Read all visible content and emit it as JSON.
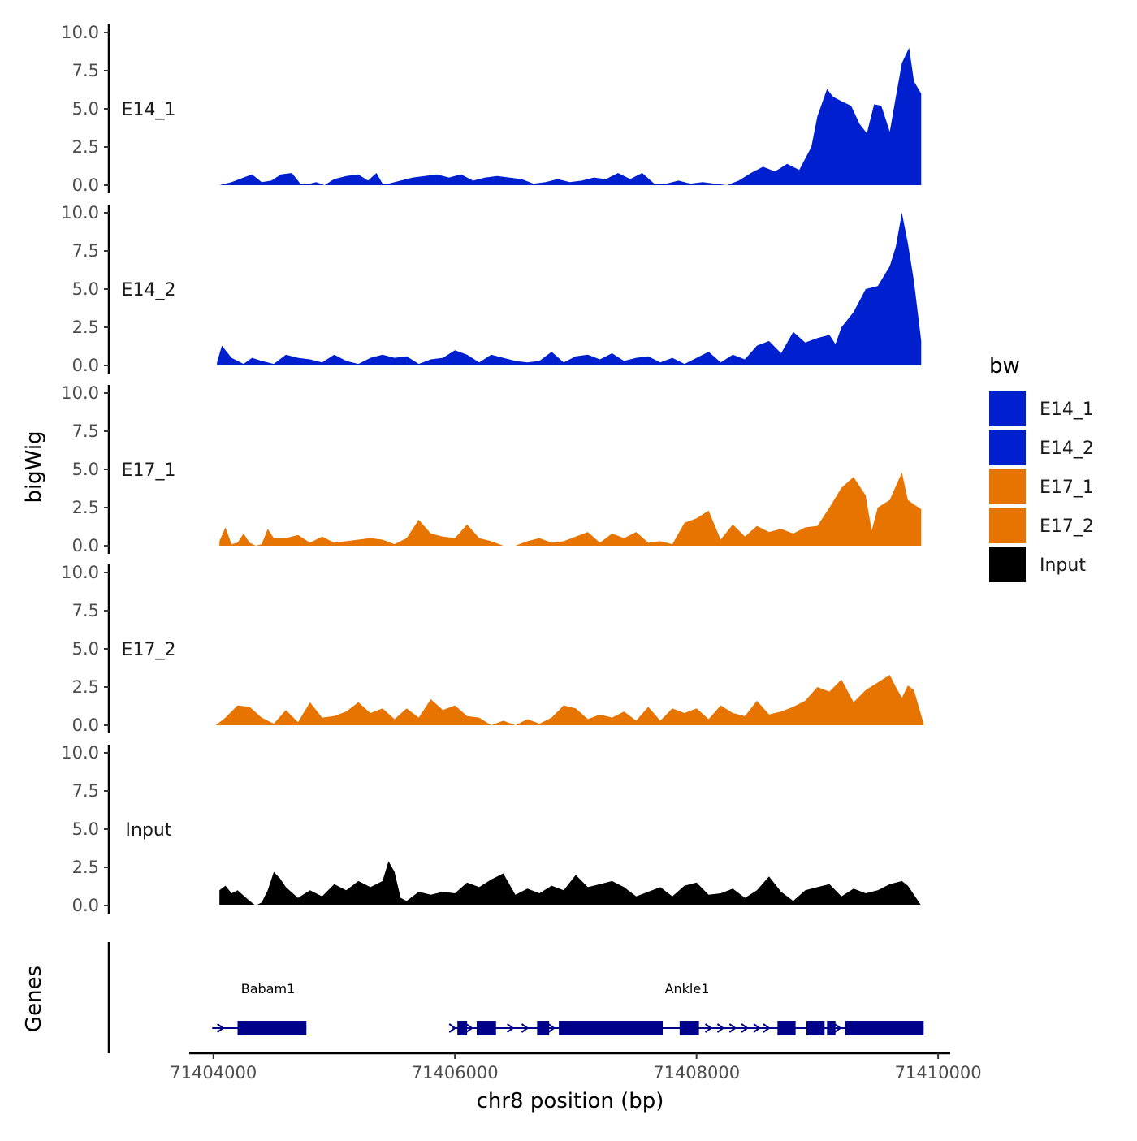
{
  "chart_data": {
    "type": "area",
    "title": "",
    "xlabel": "chr8 position (bp)",
    "ylabel": "bigWig",
    "genes_label": "Genes",
    "xlim": [
      71403800,
      71410100
    ],
    "ylim": [
      0,
      10
    ],
    "x_ticks": [
      71404000,
      71406000,
      71408000,
      71410000
    ],
    "x_tick_labels": [
      "71404000",
      "71406000",
      "71408000",
      "71410000"
    ],
    "y_ticks": [
      0,
      2.5,
      5,
      7.5,
      10
    ],
    "y_tick_labels": [
      "0.0",
      "2.5",
      "5.0",
      "7.5",
      "10.0"
    ],
    "legend": {
      "title": "bw",
      "entries": [
        {
          "name": "E14_1",
          "color": "#0020d0"
        },
        {
          "name": "E14_2",
          "color": "#0020d0"
        },
        {
          "name": "E17_1",
          "color": "#e87400"
        },
        {
          "name": "E17_2",
          "color": "#e87400"
        },
        {
          "name": "Input",
          "color": "#000000"
        }
      ]
    },
    "series": [
      {
        "name": "E14_1",
        "color": "#0020d0",
        "x": [
          71404050,
          71404150,
          71404250,
          71404320,
          71404400,
          71404480,
          71404560,
          71404650,
          71404720,
          71404800,
          71404850,
          71404920,
          71405000,
          71405100,
          71405200,
          71405280,
          71405350,
          71405400,
          71405450,
          71405550,
          71405650,
          71405750,
          71405850,
          71405950,
          71406050,
          71406150,
          71406250,
          71406350,
          71406450,
          71406550,
          71406650,
          71406750,
          71406850,
          71406950,
          71407050,
          71407150,
          71407250,
          71407350,
          71407450,
          71407550,
          71407650,
          71407750,
          71407850,
          71407950,
          71408050,
          71408150,
          71408250,
          71408350,
          71408450,
          71408550,
          71408650,
          71408750,
          71408850,
          71408950,
          71409000,
          71409080,
          71409130,
          71409200,
          71409280,
          71409350,
          71409410,
          71409470,
          71409530,
          71409600,
          71409650,
          71409700,
          71409760,
          71409800,
          71409860
        ],
        "values": [
          0,
          0.2,
          0.5,
          0.7,
          0.2,
          0.3,
          0.7,
          0.8,
          0.1,
          0.1,
          0.2,
          0,
          0.4,
          0.6,
          0.7,
          0.3,
          0.8,
          0.1,
          0.1,
          0.3,
          0.5,
          0.6,
          0.7,
          0.5,
          0.7,
          0.3,
          0.5,
          0.6,
          0.5,
          0.4,
          0.1,
          0.2,
          0.4,
          0.2,
          0.3,
          0.5,
          0.4,
          0.8,
          0.4,
          0.8,
          0.1,
          0.1,
          0.3,
          0.1,
          0.2,
          0.1,
          0,
          0.3,
          0.8,
          1.2,
          0.9,
          1.4,
          1.0,
          2.5,
          4.5,
          6.3,
          5.8,
          5.5,
          5.2,
          4.0,
          3.4,
          5.3,
          5.2,
          3.5,
          5.8,
          8.0,
          9.0,
          6.8,
          6.0
        ]
      },
      {
        "name": "E14_2",
        "color": "#0020d0",
        "x": [
          71404030,
          71404070,
          71404150,
          71404250,
          71404320,
          71404400,
          71404500,
          71404600,
          71404700,
          71404800,
          71404900,
          71405000,
          71405100,
          71405200,
          71405300,
          71405400,
          71405500,
          71405600,
          71405700,
          71405800,
          71405900,
          71406000,
          71406100,
          71406200,
          71406300,
          71406400,
          71406500,
          71406600,
          71406700,
          71406800,
          71406900,
          71407000,
          71407100,
          71407200,
          71407300,
          71407400,
          71407500,
          71407600,
          71407700,
          71407800,
          71407900,
          71408000,
          71408100,
          71408200,
          71408300,
          71408400,
          71408500,
          71408600,
          71408700,
          71408800,
          71408900,
          71409000,
          71409100,
          71409150,
          71409200,
          71409300,
          71409400,
          71409500,
          71409600,
          71409650,
          71409700,
          71409750,
          71409800,
          71409860
        ],
        "values": [
          0.2,
          1.3,
          0.5,
          0.1,
          0.5,
          0.3,
          0.1,
          0.7,
          0.5,
          0.4,
          0.2,
          0.7,
          0.3,
          0.1,
          0.5,
          0.7,
          0.5,
          0.6,
          0.1,
          0.4,
          0.5,
          1.0,
          0.7,
          0.2,
          0.7,
          0.5,
          0.3,
          0.2,
          0.3,
          0.9,
          0.2,
          0.6,
          0.7,
          0.4,
          0.8,
          0.3,
          0.5,
          0.6,
          0.2,
          0.5,
          0.1,
          0.5,
          0.9,
          0.2,
          0.7,
          0.4,
          1.3,
          1.6,
          0.8,
          2.2,
          1.5,
          1.8,
          2.0,
          1.4,
          2.5,
          3.5,
          5.0,
          5.2,
          6.5,
          7.8,
          10.0,
          8.0,
          5.5,
          1.6
        ]
      },
      {
        "name": "E17_1",
        "color": "#e87400",
        "x": [
          71404050,
          71404100,
          71404150,
          71404200,
          71404250,
          71404300,
          71404350,
          71404400,
          71404450,
          71404500,
          71404600,
          71404700,
          71404800,
          71404900,
          71405000,
          71405100,
          71405200,
          71405300,
          71405400,
          71405500,
          71405600,
          71405700,
          71405800,
          71405900,
          71406000,
          71406100,
          71406200,
          71406300,
          71406400,
          71406500,
          71406600,
          71406700,
          71406800,
          71406900,
          71407000,
          71407100,
          71407200,
          71407300,
          71407400,
          71407500,
          71407600,
          71407700,
          71407800,
          71407900,
          71408000,
          71408100,
          71408200,
          71408300,
          71408400,
          71408500,
          71408600,
          71408700,
          71408800,
          71408900,
          71409000,
          71409100,
          71409200,
          71409300,
          71409400,
          71409450,
          71409500,
          71409600,
          71409700,
          71409750,
          71409800,
          71409860
        ],
        "values": [
          0.3,
          1.2,
          0.1,
          0.2,
          0.8,
          0.2,
          0,
          0.1,
          1.1,
          0.5,
          0.5,
          0.7,
          0.2,
          0.6,
          0.2,
          0.3,
          0.4,
          0.5,
          0.4,
          0.1,
          0.5,
          1.7,
          0.8,
          0.6,
          0.5,
          1.4,
          0.5,
          0.3,
          0,
          0,
          0.3,
          0.5,
          0.2,
          0.3,
          0.6,
          0.9,
          0.2,
          0.8,
          0.5,
          0.9,
          0.2,
          0.3,
          0.1,
          1.5,
          1.8,
          2.3,
          0.4,
          1.4,
          0.6,
          1.3,
          0.9,
          1.1,
          0.8,
          1.2,
          1.3,
          2.5,
          3.8,
          4.5,
          3.3,
          1.0,
          2.5,
          3.0,
          4.8,
          3.0,
          2.7,
          2.4
        ]
      },
      {
        "name": "E17_2",
        "color": "#e87400",
        "x": [
          71404020,
          71404100,
          71404200,
          71404300,
          71404400,
          71404500,
          71404600,
          71404700,
          71404800,
          71404900,
          71405000,
          71405100,
          71405200,
          71405300,
          71405400,
          71405500,
          71405600,
          71405700,
          71405800,
          71405900,
          71406000,
          71406100,
          71406200,
          71406300,
          71406400,
          71406500,
          71406600,
          71406700,
          71406800,
          71406900,
          71407000,
          71407100,
          71407200,
          71407300,
          71407400,
          71407500,
          71407600,
          71407700,
          71407800,
          71407900,
          71408000,
          71408100,
          71408200,
          71408300,
          71408400,
          71408500,
          71408600,
          71408700,
          71408800,
          71408900,
          71409000,
          71409100,
          71409200,
          71409300,
          71409400,
          71409500,
          71409600,
          71409650,
          71409700,
          71409750,
          71409800,
          71409880
        ],
        "values": [
          0,
          0.5,
          1.3,
          1.2,
          0.5,
          0.1,
          1.0,
          0.2,
          1.5,
          0.5,
          0.6,
          0.9,
          1.5,
          0.8,
          1.1,
          0.4,
          1.1,
          0.5,
          1.7,
          1.0,
          1.3,
          0.6,
          0.5,
          0,
          0.3,
          0,
          0.4,
          0.1,
          0.5,
          1.3,
          1.1,
          0.4,
          0.7,
          0.5,
          0.9,
          0.3,
          1.2,
          0.3,
          1.1,
          0.8,
          1.1,
          0.4,
          1.3,
          0.8,
          0.6,
          1.6,
          0.7,
          0.9,
          1.2,
          1.6,
          2.5,
          2.2,
          3.0,
          1.5,
          2.3,
          2.8,
          3.3,
          2.5,
          1.8,
          2.6,
          2.3,
          0.1
        ]
      },
      {
        "name": "Input",
        "color": "#000000",
        "x": [
          71404050,
          71404100,
          71404150,
          71404200,
          71404300,
          71404350,
          71404400,
          71404450,
          71404500,
          71404550,
          71404600,
          71404700,
          71404800,
          71404900,
          71405000,
          71405100,
          71405200,
          71405300,
          71405400,
          71405450,
          71405500,
          71405550,
          71405600,
          71405700,
          71405800,
          71405900,
          71406000,
          71406100,
          71406200,
          71406300,
          71406400,
          71406500,
          71406600,
          71406700,
          71406800,
          71406900,
          71407000,
          71407100,
          71407200,
          71407300,
          71407400,
          71407500,
          71407600,
          71407700,
          71407800,
          71407900,
          71408000,
          71408100,
          71408200,
          71408300,
          71408400,
          71408500,
          71408600,
          71408700,
          71408800,
          71408900,
          71409000,
          71409100,
          71409200,
          71409300,
          71409400,
          71409500,
          71409600,
          71409700,
          71409750,
          71409800,
          71409860
        ],
        "values": [
          1.0,
          1.3,
          0.8,
          1.0,
          0.3,
          0,
          0.2,
          1.0,
          2.2,
          1.8,
          1.2,
          0.5,
          1.0,
          0.6,
          1.4,
          1.0,
          1.6,
          1.2,
          1.6,
          2.9,
          2.2,
          0.5,
          0.3,
          0.9,
          0.7,
          0.9,
          0.8,
          1.5,
          1.2,
          1.7,
          2.1,
          0.7,
          1.1,
          0.8,
          1.3,
          1.0,
          2.0,
          1.2,
          1.4,
          1.6,
          1.2,
          0.6,
          0.9,
          1.2,
          0.6,
          1.3,
          1.5,
          0.7,
          0.8,
          1.1,
          0.5,
          1.0,
          1.9,
          0.9,
          0.3,
          1.0,
          1.2,
          1.4,
          0.6,
          1.1,
          0.8,
          1.0,
          1.4,
          1.6,
          1.3,
          0.7,
          0
        ]
      }
    ],
    "genes": [
      {
        "name": "Babam1",
        "strand": "+",
        "start": 71403990,
        "end": 71404770,
        "exons": [
          [
            71404200,
            71404770
          ]
        ],
        "arrows": [
          71404060
        ]
      },
      {
        "name": "Ankle1",
        "strand": "+",
        "start": 71405980,
        "end": 71409880,
        "exons": [
          [
            71406020,
            71406100
          ],
          [
            71406180,
            71406340
          ],
          [
            71406680,
            71406780
          ],
          [
            71406860,
            71407720
          ],
          [
            71407860,
            71408020
          ],
          [
            71408670,
            71408820
          ],
          [
            71408910,
            71409060
          ],
          [
            71409080,
            71409150
          ],
          [
            71409230,
            71409880
          ]
        ],
        "arrows": [
          71405980,
          71406120,
          71406460,
          71406580,
          71406800,
          71408100,
          71408200,
          71408300,
          71408400,
          71408500,
          71408580,
          71409170
        ]
      }
    ]
  }
}
